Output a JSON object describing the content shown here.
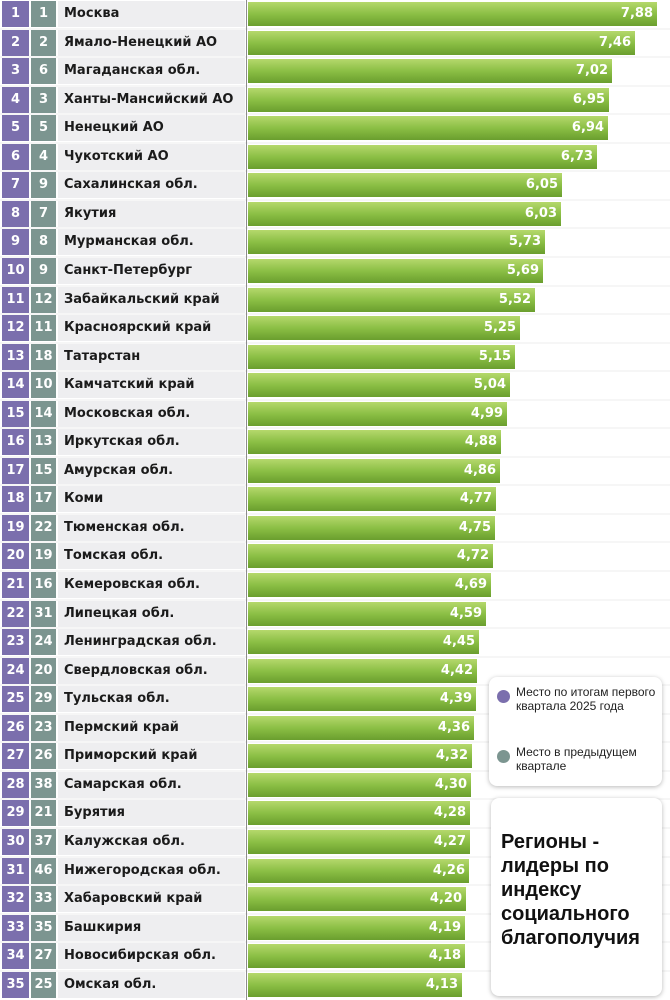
{
  "chart_data": {
    "type": "bar",
    "orientation": "horizontal",
    "title": "Регионы - лидеры по индексу социального благополучия",
    "legend": [
      {
        "label": "Место по итогам первого квартала 2025 года",
        "color": "#7b6fad"
      },
      {
        "label": "Место в предыдущем квартале",
        "color": "#7c9590"
      }
    ],
    "bar_color": "#8bbf45",
    "xlim": [
      0,
      7.88
    ],
    "rows": [
      {
        "rank": "1",
        "prev": "1",
        "region": "Москва",
        "value": 7.88,
        "label": "7,88"
      },
      {
        "rank": "2",
        "prev": "2",
        "region": "Ямало-Ненецкий АО",
        "value": 7.46,
        "label": "7,46"
      },
      {
        "rank": "3",
        "prev": "6",
        "region": "Магаданская обл.",
        "value": 7.02,
        "label": "7,02"
      },
      {
        "rank": "4",
        "prev": "3",
        "region": "Ханты-Мансийский АО",
        "value": 6.95,
        "label": "6,95"
      },
      {
        "rank": "5",
        "prev": "5",
        "region": "Ненецкий АО",
        "value": 6.94,
        "label": "6,94"
      },
      {
        "rank": "6",
        "prev": "4",
        "region": "Чукотский АО",
        "value": 6.73,
        "label": "6,73"
      },
      {
        "rank": "7",
        "prev": "9",
        "region": "Сахалинская обл.",
        "value": 6.05,
        "label": "6,05"
      },
      {
        "rank": "8",
        "prev": "7",
        "region": "Якутия",
        "value": 6.03,
        "label": "6,03"
      },
      {
        "rank": "9",
        "prev": "8",
        "region": "Мурманская обл.",
        "value": 5.73,
        "label": "5,73"
      },
      {
        "rank": "10",
        "prev": "9",
        "region": "Санкт-Петербург",
        "value": 5.69,
        "label": "5,69"
      },
      {
        "rank": "11",
        "prev": "12",
        "region": "Забайкальский край",
        "value": 5.52,
        "label": "5,52"
      },
      {
        "rank": "12",
        "prev": "11",
        "region": "Красноярский край",
        "value": 5.25,
        "label": "5,25"
      },
      {
        "rank": "13",
        "prev": "18",
        "region": "Татарстан",
        "value": 5.15,
        "label": "5,15"
      },
      {
        "rank": "14",
        "prev": "10",
        "region": "Камчатский край",
        "value": 5.04,
        "label": "5,04"
      },
      {
        "rank": "15",
        "prev": "14",
        "region": "Московская обл.",
        "value": 4.99,
        "label": "4,99"
      },
      {
        "rank": "16",
        "prev": "13",
        "region": "Иркутская обл.",
        "value": 4.88,
        "label": "4,88"
      },
      {
        "rank": "17",
        "prev": "15",
        "region": "Амурская обл.",
        "value": 4.86,
        "label": "4,86"
      },
      {
        "rank": "18",
        "prev": "17",
        "region": "Коми",
        "value": 4.77,
        "label": "4,77"
      },
      {
        "rank": "19",
        "prev": "22",
        "region": "Тюменская обл.",
        "value": 4.75,
        "label": "4,75"
      },
      {
        "rank": "20",
        "prev": "19",
        "region": "Томская обл.",
        "value": 4.72,
        "label": "4,72"
      },
      {
        "rank": "21",
        "prev": "16",
        "region": "Кемеровская обл.",
        "value": 4.69,
        "label": "4,69"
      },
      {
        "rank": "22",
        "prev": "31",
        "region": "Липецкая обл.",
        "value": 4.59,
        "label": "4,59"
      },
      {
        "rank": "23",
        "prev": "24",
        "region": "Ленинградская обл.",
        "value": 4.45,
        "label": "4,45"
      },
      {
        "rank": "24",
        "prev": "20",
        "region": "Свердловская обл.",
        "value": 4.42,
        "label": "4,42"
      },
      {
        "rank": "25",
        "prev": "29",
        "region": "Тульская обл.",
        "value": 4.39,
        "label": "4,39"
      },
      {
        "rank": "26",
        "prev": "23",
        "region": "Пермский край",
        "value": 4.36,
        "label": "4,36"
      },
      {
        "rank": "27",
        "prev": "26",
        "region": "Приморский край",
        "value": 4.32,
        "label": "4,32"
      },
      {
        "rank": "28",
        "prev": "38",
        "region": "Самарская обл.",
        "value": 4.3,
        "label": "4,30"
      },
      {
        "rank": "29",
        "prev": "21",
        "region": "Бурятия",
        "value": 4.28,
        "label": "4,28"
      },
      {
        "rank": "30",
        "prev": "37",
        "region": "Калужская обл.",
        "value": 4.27,
        "label": "4,27"
      },
      {
        "rank": "31",
        "prev": "46",
        "region": "Нижегородская обл.",
        "value": 4.26,
        "label": "4,26"
      },
      {
        "rank": "32",
        "prev": "33",
        "region": "Хабаровский край",
        "value": 4.2,
        "label": "4,20"
      },
      {
        "rank": "33",
        "prev": "35",
        "region": "Башкирия",
        "value": 4.19,
        "label": "4,19"
      },
      {
        "rank": "34",
        "prev": "27",
        "region": "Новосибирская обл.",
        "value": 4.18,
        "label": "4,18"
      },
      {
        "rank": "35",
        "prev": "25",
        "region": "Омская обл.",
        "value": 4.13,
        "label": "4,13"
      }
    ]
  }
}
